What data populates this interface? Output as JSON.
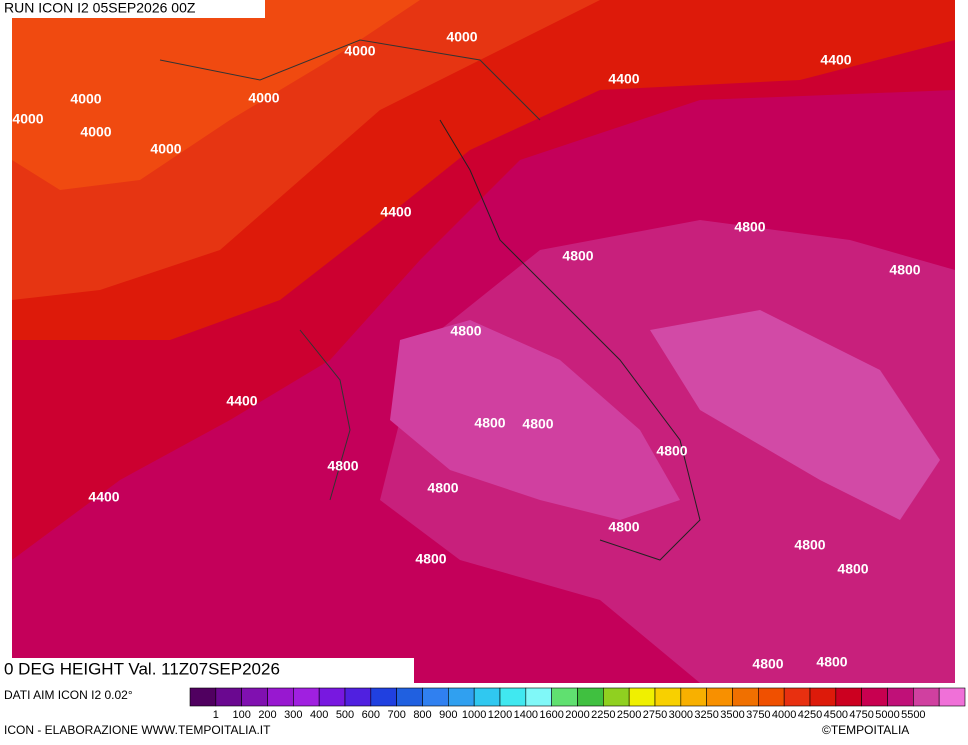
{
  "header": "RUN ICON I2 05SEP2026 00Z",
  "title": "0 DEG HEIGHT Val. 11Z07SEP2026",
  "source": "DATI AIM ICON I2 0.02°",
  "footer": "ICON - ELABORAZIONE WWW.TEMPOITALIA.IT",
  "copyright": "©TEMPOITALIA",
  "map_labels": [
    "4000",
    "4000",
    "4000",
    "4000",
    "4000",
    "4000",
    "4000",
    "4400",
    "4400",
    "4400",
    "4400",
    "4400",
    "4800",
    "4800",
    "4800",
    "4800",
    "4800",
    "4800",
    "4800",
    "4800",
    "4800",
    "4800",
    "4800",
    "4800",
    "4800",
    "4800",
    "4800"
  ],
  "legend": {
    "labels": [
      "1",
      "100",
      "200",
      "300",
      "400",
      "500",
      "600",
      "700",
      "800",
      "900",
      "1000",
      "1200",
      "1400",
      "1600",
      "2000",
      "2250",
      "2500",
      "2750",
      "3000",
      "3250",
      "3500",
      "3750",
      "4000",
      "4250",
      "4500",
      "4750",
      "5000",
      "5500"
    ],
    "colors": [
      "#500060",
      "#6a0890",
      "#8010b0",
      "#9818d0",
      "#a020e0",
      "#7818e0",
      "#5020e0",
      "#2040e0",
      "#2060e0",
      "#3080f0",
      "#30a0f0",
      "#30c8f0",
      "#40e8f0",
      "#80f8f8",
      "#60e070",
      "#40c040",
      "#90d020",
      "#f0f000",
      "#f8d000",
      "#f8b000",
      "#f89000",
      "#f07000",
      "#f05000",
      "#e83010",
      "#dd1a0a",
      "#cc0020",
      "#c80050",
      "#c01078",
      "#d040a0",
      "#f070d8"
    ]
  }
}
